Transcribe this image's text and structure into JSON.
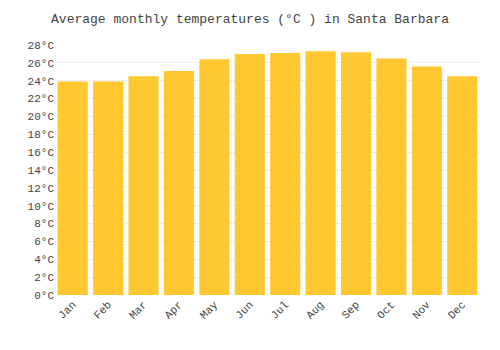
{
  "chart_data": {
    "type": "bar",
    "title": "Average monthly temperatures (°C ) in Santa Barbara",
    "categories": [
      "Jan",
      "Feb",
      "Mar",
      "Apr",
      "May",
      "Jun",
      "Jul",
      "Aug",
      "Sep",
      "Oct",
      "Nov",
      "Dec"
    ],
    "values": [
      23.9,
      23.9,
      24.5,
      25.1,
      26.4,
      27.0,
      27.1,
      27.3,
      27.2,
      26.5,
      25.6,
      24.5
    ],
    "color": "#FFC830",
    "ylim": [
      0,
      28
    ],
    "yticks": [
      {
        "value": 0,
        "label": "0°C"
      },
      {
        "value": 2,
        "label": "2°C"
      },
      {
        "value": 4,
        "label": "4°C"
      },
      {
        "value": 6,
        "label": "6°C"
      },
      {
        "value": 8,
        "label": "8°C"
      },
      {
        "value": 10,
        "label": "10°C"
      },
      {
        "value": 12,
        "label": "12°C"
      },
      {
        "value": 14,
        "label": "14°C"
      },
      {
        "value": 16,
        "label": "16°C"
      },
      {
        "value": 18,
        "label": "18°C"
      },
      {
        "value": 20,
        "label": "20°C"
      },
      {
        "value": 22,
        "label": "22°C"
      },
      {
        "value": 24,
        "label": "24°C"
      },
      {
        "value": 26,
        "label": "26°C"
      },
      {
        "value": 28,
        "label": "28°C"
      }
    ],
    "grid": true
  }
}
